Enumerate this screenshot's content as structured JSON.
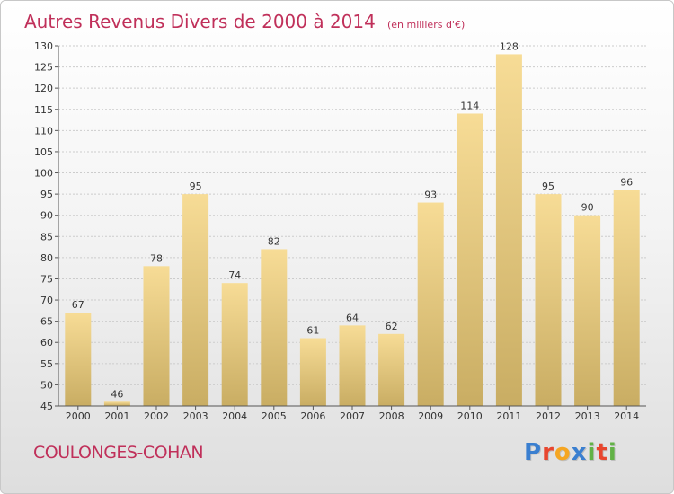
{
  "chart_data": {
    "type": "bar",
    "title": "Autres Revenus Divers de 2000 à 2014",
    "subtitle": "(en milliers d'€)",
    "categories": [
      "2000",
      "2001",
      "2002",
      "2003",
      "2004",
      "2005",
      "2006",
      "2007",
      "2008",
      "2009",
      "2010",
      "2011",
      "2012",
      "2013",
      "2014"
    ],
    "values": [
      67,
      46,
      78,
      95,
      74,
      82,
      61,
      64,
      62,
      93,
      114,
      128,
      95,
      90,
      96
    ],
    "ylim": [
      45,
      130
    ],
    "yticks": [
      45,
      50,
      55,
      60,
      65,
      70,
      75,
      80,
      85,
      90,
      95,
      100,
      105,
      110,
      115,
      120,
      125,
      130
    ],
    "grid": true,
    "bar_color_top": "#f7dc96",
    "bar_color_bottom": "#c9ad63"
  },
  "footer": {
    "commune": "COULONGES-COHAN"
  },
  "logo": {
    "letters": [
      "P",
      "r",
      "o",
      "x",
      "i",
      "t",
      "i"
    ],
    "colors": [
      "#3a7fd0",
      "#e8462e",
      "#f5a623",
      "#3a7fd0",
      "#62b246",
      "#e8462e",
      "#62b246"
    ]
  }
}
